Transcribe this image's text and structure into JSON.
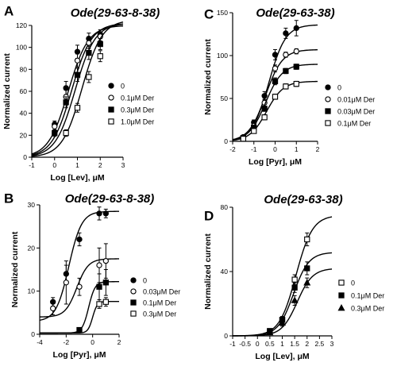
{
  "chart_data": [
    {
      "panel": "A",
      "type": "scatter",
      "title": "Ode(29-63-8-38)",
      "xlabel": "Log [Lev], μM",
      "ylabel": "Normalized current",
      "xlim": [
        -1,
        3
      ],
      "ylim": [
        0,
        120
      ],
      "xticks": [
        -1,
        0,
        1,
        2,
        3
      ],
      "yticks": [
        0,
        20,
        40,
        60,
        80,
        100,
        120
      ],
      "legend_position": "right",
      "series": [
        {
          "name": "0",
          "marker": "circle-filled",
          "x": [
            0,
            0.5,
            1,
            1.5,
            2
          ],
          "y": [
            30,
            63,
            96,
            108,
            112
          ],
          "err": [
            3,
            6,
            6,
            5,
            4
          ],
          "fit": {
            "bottom": 0,
            "top": 120,
            "logEC50": 0.6,
            "hill": 1.0
          }
        },
        {
          "name": "0.1μM Der",
          "marker": "circle-open",
          "x": [
            0,
            0.5,
            1,
            1.5,
            2
          ],
          "y": [
            28,
            55,
            88,
            104,
            110
          ],
          "err": [
            3,
            6,
            6,
            5,
            4
          ],
          "fit": {
            "bottom": 0,
            "top": 122,
            "logEC50": 0.75,
            "hill": 1.0
          }
        },
        {
          "name": "0.3μM Der",
          "marker": "square-filled",
          "x": [
            0,
            0.5,
            1,
            1.5,
            2
          ],
          "y": [
            22,
            50,
            75,
            95,
            103
          ],
          "err": [
            3,
            5,
            6,
            6,
            5
          ],
          "fit": {
            "bottom": 0,
            "top": 122,
            "logEC50": 0.9,
            "hill": 1.0
          }
        },
        {
          "name": "1.0μM Der",
          "marker": "square-open",
          "x": [
            0.5,
            1,
            1.5,
            2
          ],
          "y": [
            22,
            45,
            73,
            92
          ],
          "err": [
            3,
            4,
            5,
            5
          ],
          "fit": {
            "bottom": 0,
            "top": 125,
            "logEC50": 1.2,
            "hill": 1.0
          }
        }
      ]
    },
    {
      "panel": "B",
      "type": "scatter",
      "title": "Ode(29-63-8-38)",
      "xlabel": "Log [Pyr], μM",
      "ylabel": "Normalized current",
      "xlim": [
        -4,
        2
      ],
      "ylim": [
        0,
        30
      ],
      "xticks": [
        -4,
        -2,
        0,
        2
      ],
      "yticks": [
        0,
        10,
        20,
        30
      ],
      "legend_position": "right",
      "series": [
        {
          "name": "0",
          "marker": "circle-filled",
          "x": [
            -3,
            -2,
            -1,
            0.5,
            1
          ],
          "y": [
            7.5,
            14,
            22,
            28,
            28
          ],
          "err": [
            1,
            2,
            1.5,
            1.5,
            1
          ],
          "fit": {
            "bottom": 3,
            "top": 28.5,
            "logEC50": -1.8,
            "hill": 0.9
          }
        },
        {
          "name": "0.03μM Der",
          "marker": "circle-open",
          "x": [
            -3,
            -2,
            -1,
            0.5,
            1
          ],
          "y": [
            6,
            12,
            11,
            16,
            17
          ],
          "err": [
            1.5,
            5,
            2,
            4,
            4
          ],
          "fit": {
            "bottom": 4,
            "top": 17.5,
            "logEC50": -1.2,
            "hill": 1.0
          }
        },
        {
          "name": "0.1μM Der",
          "marker": "square-filled",
          "x": [
            -1,
            0.5,
            1
          ],
          "y": [
            1,
            11,
            12
          ],
          "err": [
            0.5,
            3,
            3
          ],
          "fit": {
            "bottom": 0.3,
            "top": 12.2,
            "logEC50": -0.3,
            "hill": 1.8
          }
        },
        {
          "name": "0.3μM Der",
          "marker": "square-open",
          "x": [
            0.5,
            1
          ],
          "y": [
            7,
            7.5
          ],
          "err": [
            1,
            1
          ],
          "fit": {
            "bottom": 0.3,
            "top": 7.6,
            "logEC50": 0,
            "hill": 2.5
          }
        }
      ]
    },
    {
      "panel": "C",
      "type": "scatter",
      "title": "Ode(29-63-38)",
      "xlabel": "Log [Pyr], μM",
      "ylabel": "Normalized current",
      "xlim": [
        -2,
        2
      ],
      "ylim": [
        0,
        150
      ],
      "xticks": [
        -2,
        -1,
        0,
        1,
        2
      ],
      "yticks": [
        0,
        50,
        100,
        150
      ],
      "legend_position": "right",
      "series": [
        {
          "name": "0",
          "marker": "circle-filled",
          "x": [
            -1.5,
            -1,
            -0.5,
            0,
            0.5,
            1
          ],
          "y": [
            5,
            22,
            53,
            101,
            126,
            132
          ],
          "err": [
            1,
            3,
            5,
            6,
            6,
            9
          ],
          "fit": {
            "bottom": 0,
            "top": 136,
            "logEC50": -0.3,
            "hill": 1.1
          }
        },
        {
          "name": "0.01μM Der",
          "marker": "circle-open",
          "x": [
            -1.5,
            -1,
            -0.5,
            0,
            0.5,
            1
          ],
          "y": [
            5,
            18,
            45,
            85,
            101,
            105
          ],
          "err": [
            1,
            2,
            4,
            4,
            3,
            3
          ],
          "fit": {
            "bottom": 0,
            "top": 107,
            "logEC50": -0.45,
            "hill": 1.1
          }
        },
        {
          "name": "0.03μM Der",
          "marker": "square-filled",
          "x": [
            -1.5,
            -1,
            -0.5,
            0,
            0.5,
            1
          ],
          "y": [
            4,
            16,
            38,
            70,
            82,
            87
          ],
          "err": [
            1,
            2,
            3,
            4,
            3,
            3
          ],
          "fit": {
            "bottom": 0,
            "top": 90,
            "logEC50": -0.45,
            "hill": 1.1
          }
        },
        {
          "name": "0.1μM Der",
          "marker": "square-open",
          "x": [
            -1.5,
            -1,
            -0.5,
            0,
            0.5,
            1
          ],
          "y": [
            3,
            12,
            28,
            52,
            64,
            67
          ],
          "err": [
            1,
            2,
            3,
            3,
            3,
            3
          ],
          "fit": {
            "bottom": 0,
            "top": 70,
            "logEC50": -0.4,
            "hill": 1.1
          }
        }
      ]
    },
    {
      "panel": "D",
      "type": "scatter",
      "title": "Ode(29-63-38)",
      "xlabel": "Log [Lev], μM",
      "ylabel": "Normalized current",
      "xlim": [
        -1,
        3
      ],
      "ylim": [
        0,
        80
      ],
      "xticks": [
        -1,
        -0.5,
        0,
        0.5,
        1,
        1.5,
        2,
        2.5,
        3
      ],
      "yticks": [
        0,
        40,
        80
      ],
      "legend_position": "right",
      "series": [
        {
          "name": "0",
          "marker": "square-open",
          "x": [
            0.5,
            1,
            1.5,
            2
          ],
          "y": [
            3,
            10,
            35,
            60
          ],
          "err": [
            1,
            2,
            3,
            4
          ],
          "fit": {
            "bottom": 0,
            "top": 75,
            "logEC50": 1.55,
            "hill": 1.3
          }
        },
        {
          "name": "0.1μM Der",
          "marker": "square-filled",
          "x": [
            0.5,
            1,
            1.5,
            2
          ],
          "y": [
            3,
            10,
            30,
            42
          ],
          "err": [
            1,
            2,
            3,
            4
          ],
          "fit": {
            "bottom": 0,
            "top": 52,
            "logEC50": 1.45,
            "hill": 1.4
          }
        },
        {
          "name": "0.3μM Der",
          "marker": "triangle-filled",
          "x": [
            0.5,
            1,
            1.5,
            2
          ],
          "y": [
            2,
            8,
            22,
            33
          ],
          "err": [
            1,
            2,
            3,
            3
          ],
          "fit": {
            "bottom": 0,
            "top": 42,
            "logEC50": 1.6,
            "hill": 1.4
          }
        }
      ]
    }
  ]
}
